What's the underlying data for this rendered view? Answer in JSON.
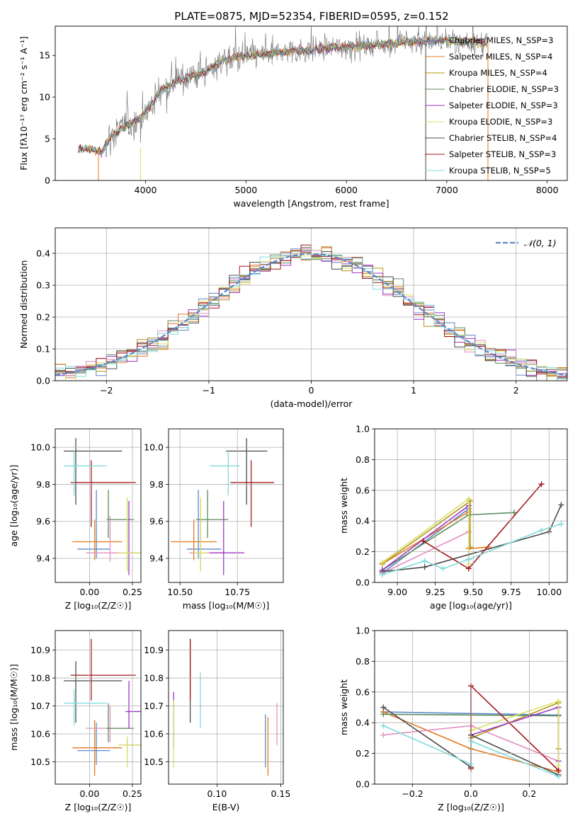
{
  "figure": {
    "title": "PLATE=0875, MJD=52354, FIBERID=0595, z=0.152",
    "colors": {
      "c0": "#5b87c9",
      "c1": "#e6791e",
      "c2": "#e48fc0",
      "c3": "#b39416",
      "c4": "#5c8c5c",
      "c5": "#9b37c5",
      "c6": "#d8e06a",
      "c7": "#4c4c4c",
      "c8": "#a3171c",
      "c9": "#82dbdb",
      "data": "#808080",
      "normal": "#5b87c9"
    }
  },
  "chart_data": [
    {
      "type": "line",
      "title": "PLATE=0875, MJD=52354, FIBERID=0595, z=0.152",
      "xlabel": "wavelength [Angstrom, rest frame]",
      "ylabel": "Flux [fλ10⁻¹⁷ erg cm⁻² s⁻¹ A⁻¹]",
      "xlim": [
        3100,
        8200
      ],
      "ylim": [
        0,
        18.5
      ],
      "xticks": [
        4000,
        5000,
        6000,
        7000,
        8000
      ],
      "yticks": [
        0,
        5,
        10,
        15
      ],
      "grid": false,
      "legend_position": "upper-right",
      "continuum_x": [
        3330,
        3400,
        3500,
        3560,
        3650,
        3750,
        3850,
        3950,
        4050,
        4150,
        4300,
        4450,
        4600,
        4750,
        4900,
        5050,
        5200,
        5400,
        5600,
        5800,
        6000,
        6200,
        6400,
        6600,
        6800,
        7000,
        7200,
        7400
      ],
      "continuum_y": [
        3.7,
        3.9,
        3.6,
        3.4,
        5.2,
        6.2,
        6.8,
        7.5,
        9.0,
        10.8,
        11.8,
        12.5,
        13.0,
        14.3,
        14.8,
        15.0,
        15.1,
        15.5,
        15.6,
        15.9,
        16.0,
        16.2,
        16.4,
        16.6,
        16.7,
        16.8,
        16.6,
        16.4
      ],
      "series": [
        {
          "name": "Chabrier MILES, N_SSP=3",
          "color_key": "c0"
        },
        {
          "name": "Salpeter MILES, N_SSP=4",
          "color_key": "c1"
        },
        {
          "name": "Kroupa MILES, N_SSP=4",
          "color_key": "c3"
        },
        {
          "name": "Chabrier ELODIE, N_SSP=3",
          "color_key": "c4"
        },
        {
          "name": "Salpeter ELODIE, N_SSP=3",
          "color_key": "c5"
        },
        {
          "name": "Kroupa ELODIE, N_SSP=3",
          "color_key": "c6"
        },
        {
          "name": "Chabrier STELIB, N_SSP=4",
          "color_key": "c7"
        },
        {
          "name": "Salpeter STELIB, N_SSP=3",
          "color_key": "c8"
        },
        {
          "name": "Kroupa STELIB, N_SSP=5",
          "color_key": "c9"
        }
      ]
    },
    {
      "type": "area",
      "xlabel": "(data-model)/error",
      "ylabel": "Normed distribution",
      "xlim": [
        -2.5,
        2.5
      ],
      "ylim": [
        0,
        0.48
      ],
      "xticks": [
        -2,
        -1,
        0,
        1,
        2
      ],
      "yticks": [
        0.0,
        0.1,
        0.2,
        0.3,
        0.4
      ],
      "grid": true,
      "legend_position": "upper-right",
      "legend_label": "𝒩(0, 1)",
      "bin_width": 0.1
    },
    {
      "type": "scatter",
      "xlabel": "Z [log₁₀(Z/Z☉)]",
      "ylabel": "age  [log₁₀(age/yr)]",
      "xlim": [
        -0.2,
        0.3
      ],
      "ylim": [
        9.27,
        10.1
      ],
      "xticks": [
        0.0,
        0.25
      ],
      "yticks": [
        9.4,
        9.6,
        9.8,
        10.0
      ],
      "grid": true,
      "points": [
        {
          "color_key": "c0",
          "x": 0.04,
          "xerr": [
            0.11,
            0.08
          ],
          "y": 9.45,
          "yerr": [
            0.05,
            0.32
          ]
        },
        {
          "color_key": "c1",
          "x": 0.03,
          "xerr": [
            0.13,
            0.16
          ],
          "y": 9.49,
          "yerr": [
            0.1,
            0.12
          ]
        },
        {
          "color_key": "c2",
          "x": 0.12,
          "xerr": [
            0.14,
            0.14
          ],
          "y": 9.43,
          "yerr": [
            0.05,
            0.2
          ]
        },
        {
          "color_key": "c3",
          "x": 0.22,
          "xerr": [
            0.05,
            0.08
          ],
          "y": 9.43,
          "yerr": [
            0.1,
            0.28
          ]
        },
        {
          "color_key": "c4",
          "x": 0.11,
          "xerr": [
            0.01,
            0.15
          ],
          "y": 9.61,
          "yerr": [
            0.1,
            0.16
          ]
        },
        {
          "color_key": "c5",
          "x": 0.23,
          "xerr": [
            0.02,
            0.07
          ],
          "y": 9.43,
          "yerr": [
            0.12,
            0.28
          ]
        },
        {
          "color_key": "c6",
          "x": 0.22,
          "xerr": [
            0.05,
            0.08
          ],
          "y": 9.43,
          "yerr": [
            0.1,
            0.3
          ]
        },
        {
          "color_key": "c7",
          "x": -0.08,
          "xerr": [
            0.07,
            0.27
          ],
          "y": 9.98,
          "yerr": [
            0.29,
            0.07
          ]
        },
        {
          "color_key": "c8",
          "x": 0.01,
          "xerr": [
            0.12,
            0.26
          ],
          "y": 9.81,
          "yerr": [
            0.24,
            0.12
          ]
        },
        {
          "color_key": "c9",
          "x": -0.09,
          "xerr": [
            0.06,
            0.19
          ],
          "y": 9.9,
          "yerr": [
            0.16,
            0.08
          ]
        }
      ]
    },
    {
      "type": "scatter",
      "xlabel": "mass [log₁₀(M/M☉)]",
      "xlim": [
        10.45,
        10.95
      ],
      "ylim": [
        9.27,
        10.1
      ],
      "xticks": [
        10.5,
        10.75
      ],
      "yticks": [
        9.4,
        9.6,
        9.8,
        10.0
      ],
      "grid": true,
      "points": [
        {
          "color_key": "c0",
          "x": 10.58,
          "xerr": [
            0.05,
            0.1
          ],
          "y": 9.45,
          "yerr": [
            0.05,
            0.32
          ]
        },
        {
          "color_key": "c1",
          "x": 10.56,
          "xerr": [
            0.1,
            0.1
          ],
          "y": 9.49,
          "yerr": [
            0.1,
            0.12
          ]
        },
        {
          "color_key": "c2",
          "x": 10.59,
          "xerr": [
            0.05,
            0.1
          ],
          "y": 9.43,
          "yerr": [
            0.05,
            0.2
          ]
        },
        {
          "color_key": "c3",
          "x": 10.59,
          "xerr": [
            0.03,
            0.03
          ],
          "y": 9.43,
          "yerr": [
            0.1,
            0.28
          ]
        },
        {
          "color_key": "c4",
          "x": 10.62,
          "xerr": [
            0.05,
            0.09
          ],
          "y": 9.61,
          "yerr": [
            0.1,
            0.16
          ]
        },
        {
          "color_key": "c5",
          "x": 10.69,
          "xerr": [
            0.06,
            0.09
          ],
          "y": 9.43,
          "yerr": [
            0.12,
            0.28
          ]
        },
        {
          "color_key": "c6",
          "x": 10.59,
          "xerr": [
            0.03,
            0.03
          ],
          "y": 9.43,
          "yerr": [
            0.1,
            0.3
          ]
        },
        {
          "color_key": "c7",
          "x": 10.79,
          "xerr": [
            0.09,
            0.09
          ],
          "y": 9.98,
          "yerr": [
            0.29,
            0.07
          ]
        },
        {
          "color_key": "c8",
          "x": 10.81,
          "xerr": [
            0.09,
            0.1
          ],
          "y": 9.81,
          "yerr": [
            0.24,
            0.12
          ]
        },
        {
          "color_key": "c9",
          "x": 10.71,
          "xerr": [
            0.08,
            0.05
          ],
          "y": 9.9,
          "yerr": [
            0.16,
            0.08
          ]
        }
      ]
    },
    {
      "type": "line",
      "xlabel": "age  [log₁₀(age/yr)]",
      "ylabel": "mass weight",
      "xlim": [
        8.85,
        10.12
      ],
      "ylim": [
        0,
        1.0
      ],
      "xticks": [
        9.0,
        9.25,
        9.5,
        9.75,
        10.0
      ],
      "yticks": [
        0.0,
        0.2,
        0.4,
        0.6,
        0.8,
        1.0
      ],
      "grid": true,
      "series": [
        {
          "color_key": "c0",
          "x": [
            8.9,
            9.47,
            9.47
          ],
          "y": [
            0.06,
            0.48,
            0.46
          ]
        },
        {
          "color_key": "c1",
          "x": [
            8.9,
            9.47,
            9.47,
            9.6
          ],
          "y": [
            0.12,
            0.46,
            0.22,
            0.23
          ]
        },
        {
          "color_key": "c2",
          "x": [
            8.9,
            9.47,
            9.47
          ],
          "y": [
            0.06,
            0.33,
            0.15
          ]
        },
        {
          "color_key": "c3",
          "x": [
            8.9,
            9.48,
            9.48
          ],
          "y": [
            0.12,
            0.53,
            0.23
          ]
        },
        {
          "color_key": "c4",
          "x": [
            8.9,
            9.47,
            9.77
          ],
          "y": [
            0.08,
            0.44,
            0.455
          ]
        },
        {
          "color_key": "c5",
          "x": [
            8.9,
            9.47,
            9.47
          ],
          "y": [
            0.08,
            0.5,
            0.15
          ]
        },
        {
          "color_key": "c6",
          "x": [
            8.9,
            9.47,
            9.47
          ],
          "y": [
            0.13,
            0.545,
            0.12
          ]
        },
        {
          "color_key": "c7",
          "x": [
            8.9,
            9.18,
            10.0,
            10.08
          ],
          "y": [
            0.07,
            0.1,
            0.33,
            0.505
          ]
        },
        {
          "color_key": "c8",
          "x": [
            9.17,
            9.47,
            9.95
          ],
          "y": [
            0.27,
            0.09,
            0.64
          ]
        },
        {
          "color_key": "c9",
          "x": [
            8.9,
            9.18,
            9.3,
            9.47,
            9.95,
            10.08
          ],
          "y": [
            0.05,
            0.14,
            0.09,
            0.15,
            0.34,
            0.38
          ]
        }
      ]
    },
    {
      "type": "scatter",
      "xlabel": "Z [log₁₀(Z/Z☉)]",
      "ylabel": "mass [log₁₀(M/M☉)]",
      "xlim": [
        -0.2,
        0.3
      ],
      "ylim": [
        10.42,
        10.97
      ],
      "xticks": [
        0.0,
        0.25
      ],
      "yticks": [
        10.5,
        10.6,
        10.7,
        10.8,
        10.9
      ],
      "grid": true,
      "points": [
        {
          "color_key": "c0",
          "x": 0.04,
          "xerr": [
            0.11,
            0.08
          ],
          "y": 10.54,
          "yerr": [
            0.05,
            0.1
          ]
        },
        {
          "color_key": "c1",
          "x": 0.03,
          "xerr": [
            0.13,
            0.16
          ],
          "y": 10.55,
          "yerr": [
            0.1,
            0.1
          ]
        },
        {
          "color_key": "c2",
          "x": 0.12,
          "xerr": [
            0.14,
            0.14
          ],
          "y": 10.62,
          "yerr": [
            0.05,
            0.08
          ]
        },
        {
          "color_key": "c3",
          "x": 0.22,
          "xerr": [
            0.05,
            0.08
          ],
          "y": 10.56,
          "yerr": [
            0.03,
            0.03
          ]
        },
        {
          "color_key": "c4",
          "x": 0.11,
          "xerr": [
            0.01,
            0.15
          ],
          "y": 10.62,
          "yerr": [
            0.05,
            0.09
          ]
        },
        {
          "color_key": "c5",
          "x": 0.23,
          "xerr": [
            0.02,
            0.07
          ],
          "y": 10.68,
          "yerr": [
            0.06,
            0.11
          ]
        },
        {
          "color_key": "c6",
          "x": 0.22,
          "xerr": [
            0.05,
            0.08
          ],
          "y": 10.56,
          "yerr": [
            0.08,
            0.03
          ]
        },
        {
          "color_key": "c7",
          "x": -0.08,
          "xerr": [
            0.07,
            0.27
          ],
          "y": 10.79,
          "yerr": [
            0.15,
            0.07
          ]
        },
        {
          "color_key": "c8",
          "x": 0.01,
          "xerr": [
            0.12,
            0.26
          ],
          "y": 10.81,
          "yerr": [
            0.09,
            0.13
          ]
        },
        {
          "color_key": "c9",
          "x": -0.09,
          "xerr": [
            0.06,
            0.19
          ],
          "y": 10.71,
          "yerr": [
            0.08,
            0.05
          ]
        }
      ]
    },
    {
      "type": "scatter",
      "xlabel": "E(B-V)",
      "xlim": [
        0.062,
        0.152
      ],
      "ylim": [
        10.42,
        10.97
      ],
      "xticks": [
        0.1,
        0.15
      ],
      "yticks": [
        10.5,
        10.6,
        10.7,
        10.8,
        10.9
      ],
      "grid": true,
      "points": [
        {
          "color_key": "c0",
          "x": 0.138,
          "yerr": [
            0.06,
            0.13
          ],
          "y": 10.54
        },
        {
          "color_key": "c1",
          "x": 0.14,
          "yerr": [
            0.09,
            0.12
          ],
          "y": 10.54
        },
        {
          "color_key": "c2",
          "x": 0.147,
          "yerr": [
            0.05,
            0.1
          ],
          "y": 10.61
        },
        {
          "color_key": "c5",
          "x": 0.066,
          "yerr": [
            0.12,
            0.08
          ],
          "y": 10.67
        },
        {
          "color_key": "c6",
          "x": 0.066,
          "yerr": [
            0.19,
            0.05
          ],
          "y": 10.67
        },
        {
          "color_key": "c7",
          "x": 0.079,
          "yerr": [
            0.15,
            0.15
          ],
          "y": 10.79
        },
        {
          "color_key": "c8",
          "x": 0.079,
          "yerr": [
            0.08,
            0.14
          ],
          "y": 10.8
        },
        {
          "color_key": "c9",
          "x": 0.087,
          "yerr": [
            0.1,
            0.1
          ],
          "y": 10.72
        }
      ]
    },
    {
      "type": "line",
      "xlabel": "Z [log₁₀(Z/Z☉)]",
      "ylabel": "mass weight",
      "xlim": [
        -0.33,
        0.33
      ],
      "ylim": [
        0,
        1.0
      ],
      "xticks": [
        -0.2,
        0.0,
        0.2
      ],
      "yticks": [
        0.0,
        0.2,
        0.4,
        0.6,
        0.8,
        1.0
      ],
      "grid": true,
      "series": [
        {
          "color_key": "c0",
          "x": [
            -0.3,
            0.3
          ],
          "y": [
            0.47,
            0.45
          ]
        },
        {
          "color_key": "c1",
          "x": [
            -0.3,
            0.0,
            0.3
          ],
          "y": [
            0.47,
            0.23,
            0.08
          ]
        },
        {
          "color_key": "c2",
          "x": [
            -0.3,
            0.0,
            0.3
          ],
          "y": [
            0.32,
            0.38,
            0.15
          ]
        },
        {
          "color_key": "c3",
          "x": [
            0.0,
            0.3,
            0.3
          ],
          "y": [
            0.3,
            0.53,
            0.23
          ]
        },
        {
          "color_key": "c4",
          "x": [
            -0.3,
            0.3
          ],
          "y": [
            0.455,
            0.445
          ]
        },
        {
          "color_key": "c5",
          "x": [
            0.0,
            0.3,
            0.3
          ],
          "y": [
            0.32,
            0.5,
            0.15
          ]
        },
        {
          "color_key": "c6",
          "x": [
            0.0,
            0.3,
            0.3
          ],
          "y": [
            0.35,
            0.54,
            0.12
          ]
        },
        {
          "color_key": "c7",
          "x": [
            -0.3,
            0.0,
            0.0,
            0.3
          ],
          "y": [
            0.5,
            0.11,
            0.32,
            0.06
          ]
        },
        {
          "color_key": "c8",
          "x": [
            0.0,
            0.0,
            0.3
          ],
          "y": [
            0.1,
            0.64,
            0.09
          ]
        },
        {
          "color_key": "c9",
          "x": [
            -0.3,
            0.0,
            0.0,
            0.3
          ],
          "y": [
            0.38,
            0.13,
            0.28,
            0.05
          ]
        }
      ]
    }
  ]
}
